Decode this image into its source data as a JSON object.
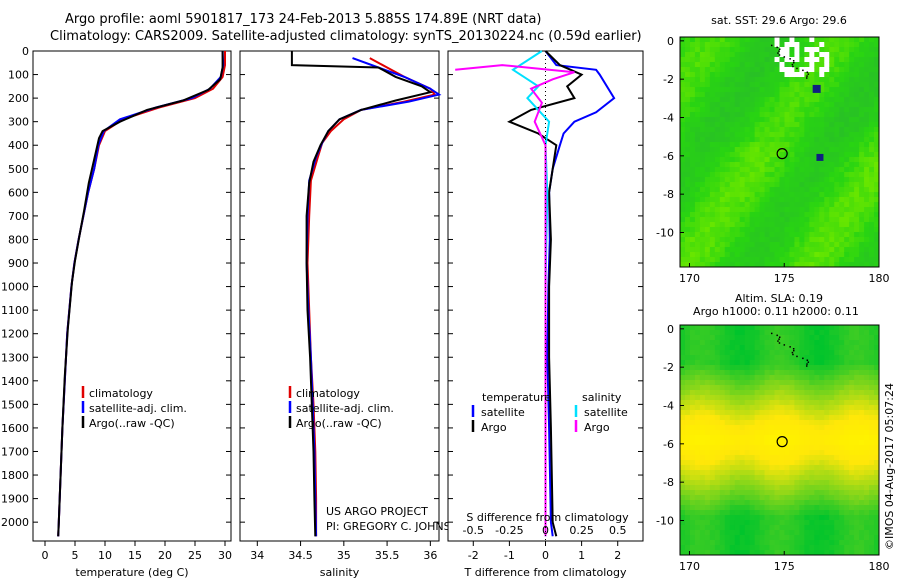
{
  "header": {
    "line1": "Argo profile: aoml 5901817_173 24-Feb-2013 5.885S 174.89E (NRT data)",
    "line2": "Climatology: CARS2009. Satellite-adjusted climatology: synTS_20130224.nc (0.59d earlier)"
  },
  "colors": {
    "climatology": "#e00000",
    "satellite": "#0000ff",
    "argo": "#000000",
    "sat_salinity": "#00e0ff",
    "argo_salinity": "#ff00ff"
  },
  "chart_data": [
    {
      "type": "line",
      "name": "temperature-panel",
      "xlabel": "temperature (deg C)",
      "ylabel": "",
      "xlim": [
        -2,
        31
      ],
      "ylim": [
        2080,
        0
      ],
      "xticks": [
        0,
        5,
        10,
        15,
        20,
        25,
        30
      ],
      "yticks": [
        0,
        100,
        200,
        300,
        400,
        500,
        600,
        700,
        800,
        900,
        1000,
        1100,
        1200,
        1300,
        1400,
        1500,
        1600,
        1700,
        1800,
        1900,
        2000
      ],
      "legend": [
        "climatology",
        "satellite-adj. clim.",
        "Argo(..raw -QC)"
      ],
      "series": [
        {
          "name": "climatology",
          "color": "#e00000",
          "points": [
            [
              30,
              0
            ],
            [
              30,
              60
            ],
            [
              29.6,
              110
            ],
            [
              28,
              160
            ],
            [
              25,
              200
            ],
            [
              19,
              240
            ],
            [
              13,
              290
            ],
            [
              10,
              340
            ],
            [
              9,
              400
            ],
            [
              8.2,
              500
            ],
            [
              7.2,
              600
            ],
            [
              6.4,
              700
            ],
            [
              5.6,
              800
            ],
            [
              4.9,
              900
            ],
            [
              4.4,
              1000
            ],
            [
              3.7,
              1200
            ],
            [
              3.3,
              1400
            ],
            [
              2.9,
              1600
            ],
            [
              2.6,
              1800
            ],
            [
              2.3,
              2000
            ],
            [
              2.2,
              2060
            ]
          ]
        },
        {
          "name": "satellite-adj. clim.",
          "color": "#0000ff",
          "points": [
            [
              29.6,
              0
            ],
            [
              29.7,
              60
            ],
            [
              29.3,
              110
            ],
            [
              27.5,
              160
            ],
            [
              24.5,
              200
            ],
            [
              18.5,
              240
            ],
            [
              12.5,
              290
            ],
            [
              9.8,
              340
            ],
            [
              8.9,
              400
            ],
            [
              8.2,
              500
            ],
            [
              7.2,
              600
            ],
            [
              6.4,
              700
            ],
            [
              5.6,
              800
            ],
            [
              4.9,
              900
            ],
            [
              4.4,
              1000
            ],
            [
              3.7,
              1200
            ],
            [
              3.3,
              1400
            ],
            [
              2.9,
              1600
            ],
            [
              2.6,
              1800
            ],
            [
              2.3,
              2000
            ],
            [
              2.2,
              2060
            ]
          ]
        },
        {
          "name": "Argo(..raw -QC)",
          "color": "#000000",
          "points": [
            [
              29.6,
              0
            ],
            [
              29.6,
              70
            ],
            [
              29.2,
              120
            ],
            [
              27.2,
              165
            ],
            [
              23,
              210
            ],
            [
              17,
              250
            ],
            [
              12.5,
              300
            ],
            [
              9.6,
              340
            ],
            [
              9,
              370
            ],
            [
              8.2,
              460
            ],
            [
              7.3,
              560
            ],
            [
              6.5,
              680
            ],
            [
              5.7,
              790
            ],
            [
              5,
              890
            ],
            [
              4.5,
              980
            ],
            [
              3.8,
              1180
            ],
            [
              3.3,
              1380
            ],
            [
              2.9,
              1600
            ],
            [
              2.6,
              1800
            ],
            [
              2.3,
              2000
            ],
            [
              2.2,
              2060
            ]
          ]
        }
      ]
    },
    {
      "type": "line",
      "name": "salinity-panel",
      "xlabel": "salinity",
      "ylabel": "",
      "xlim": [
        33.8,
        36.1
      ],
      "ylim": [
        2080,
        0
      ],
      "xticks": [
        34,
        34.5,
        35,
        35.5,
        36
      ],
      "legend": [
        "climatology",
        "satellite-adj. clim.",
        "Argo(..raw -QC)"
      ],
      "annotations": [
        "US ARGO PROJECT",
        "PI: GREGORY C. JOHNSON"
      ],
      "series": [
        {
          "name": "climatology",
          "color": "#e00000",
          "points": [
            [
              35.3,
              30
            ],
            [
              35.5,
              70
            ],
            [
              35.7,
              110
            ],
            [
              36,
              160
            ],
            [
              36.05,
              185
            ],
            [
              35.7,
              215
            ],
            [
              35.2,
              250
            ],
            [
              35,
              290
            ],
            [
              34.85,
              340
            ],
            [
              34.75,
              390
            ],
            [
              34.7,
              450
            ],
            [
              34.62,
              550
            ],
            [
              34.6,
              700
            ],
            [
              34.58,
              900
            ],
            [
              34.6,
              1100
            ],
            [
              34.62,
              1300
            ],
            [
              34.65,
              1500
            ],
            [
              34.67,
              1700
            ],
            [
              34.68,
              1900
            ],
            [
              34.68,
              2060
            ]
          ]
        },
        {
          "name": "satellite-adj. clim.",
          "color": "#0000ff",
          "points": [
            [
              35.1,
              30
            ],
            [
              35.4,
              70
            ],
            [
              35.7,
              110
            ],
            [
              36,
              160
            ],
            [
              36.1,
              185
            ],
            [
              35.75,
              215
            ],
            [
              35.2,
              250
            ],
            [
              34.95,
              290
            ],
            [
              34.82,
              340
            ],
            [
              34.75,
              390
            ],
            [
              34.68,
              450
            ],
            [
              34.6,
              550
            ],
            [
              34.58,
              700
            ],
            [
              34.57,
              900
            ],
            [
              34.59,
              1100
            ],
            [
              34.62,
              1300
            ],
            [
              34.64,
              1500
            ],
            [
              34.66,
              1700
            ],
            [
              34.67,
              1900
            ],
            [
              34.68,
              2060
            ]
          ]
        },
        {
          "name": "Argo(..raw -QC)",
          "color": "#000000",
          "points": [
            [
              34.4,
              0
            ],
            [
              34.4,
              60
            ],
            [
              35.4,
              70
            ],
            [
              35.6,
              110
            ],
            [
              35.9,
              150
            ],
            [
              36,
              175
            ],
            [
              35.6,
              210
            ],
            [
              35.2,
              250
            ],
            [
              34.95,
              290
            ],
            [
              34.82,
              340
            ],
            [
              34.73,
              400
            ],
            [
              34.65,
              470
            ],
            [
              34.6,
              560
            ],
            [
              34.57,
              700
            ],
            [
              34.57,
              900
            ],
            [
              34.58,
              1100
            ],
            [
              34.61,
              1300
            ],
            [
              34.63,
              1500
            ],
            [
              34.65,
              1700
            ],
            [
              34.66,
              1900
            ],
            [
              34.67,
              2060
            ]
          ]
        }
      ]
    },
    {
      "type": "line",
      "name": "difference-panel",
      "xlabel": "T difference from climatology",
      "xlabel_top": "S difference from climatology",
      "xlim": [
        -2.7,
        2.7
      ],
      "ylim": [
        2080,
        0
      ],
      "xticks": [
        -2,
        -1,
        0,
        1,
        2
      ],
      "xticks_top": [
        -0.5,
        -0.25,
        0,
        0.25,
        0.5
      ],
      "legend_groups": [
        "temperature",
        "salinity"
      ],
      "legend": [
        "satellite",
        "Argo",
        "satellite",
        "Argo"
      ],
      "series": [
        {
          "name": "temperature satellite",
          "color": "#0000ff",
          "points": [
            [
              0,
              0
            ],
            [
              0.3,
              60
            ],
            [
              1.4,
              80
            ],
            [
              1.5,
              100
            ],
            [
              1.9,
              200
            ],
            [
              1.4,
              260
            ],
            [
              0.8,
              300
            ],
            [
              0.5,
              350
            ],
            [
              0.4,
              400
            ],
            [
              0.2,
              500
            ],
            [
              0.1,
              600
            ],
            [
              0.12,
              800
            ],
            [
              0.08,
              1000
            ],
            [
              0.05,
              1300
            ],
            [
              0.1,
              1600
            ],
            [
              0.15,
              2000
            ],
            [
              0.2,
              2060
            ]
          ]
        },
        {
          "name": "temperature Argo",
          "color": "#000000",
          "points": [
            [
              0,
              0
            ],
            [
              0.4,
              60
            ],
            [
              1,
              100
            ],
            [
              0.6,
              150
            ],
            [
              0.8,
              200
            ],
            [
              -0.4,
              250
            ],
            [
              -1,
              300
            ],
            [
              -0.2,
              350
            ],
            [
              0.3,
              400
            ],
            [
              0.2,
              500
            ],
            [
              0.1,
              600
            ],
            [
              0.15,
              800
            ],
            [
              0.1,
              1000
            ],
            [
              0.1,
              1300
            ],
            [
              0.15,
              1600
            ],
            [
              0.2,
              2000
            ],
            [
              0.3,
              2060
            ]
          ]
        },
        {
          "name": "salinity satellite",
          "color": "#00e0ff",
          "points": [
            [
              -0.1,
              0
            ],
            [
              -0.9,
              80
            ],
            [
              -0.2,
              150
            ],
            [
              -0.5,
              200
            ],
            [
              0.1,
              300
            ],
            [
              0,
              400
            ],
            [
              0.05,
              600
            ],
            [
              0,
              1000
            ],
            [
              0,
              1400
            ],
            [
              0,
              1800
            ],
            [
              0,
              2060
            ]
          ]
        },
        {
          "name": "salinity Argo",
          "color": "#ff00ff",
          "points": [
            [
              -2.5,
              80
            ],
            [
              -1.2,
              60
            ],
            [
              0.8,
              90
            ],
            [
              0.2,
              120
            ],
            [
              -0.4,
              160
            ],
            [
              -0.1,
              220
            ],
            [
              -0.3,
              300
            ],
            [
              0,
              400
            ],
            [
              0,
              600
            ],
            [
              0,
              1000
            ],
            [
              0,
              1400
            ],
            [
              0,
              1800
            ],
            [
              0,
              2060
            ]
          ]
        }
      ]
    },
    {
      "type": "heatmap",
      "name": "sst-map",
      "title": "sat. SST: 29.6 Argo: 29.6",
      "xlim": [
        169.5,
        180
      ],
      "ylim": [
        -11.8,
        0.2
      ],
      "xticks": [
        170,
        175,
        180
      ],
      "yticks": [
        0,
        -2,
        -4,
        -6,
        -8,
        -10
      ],
      "marker": [
        174.89,
        -5.885
      ]
    },
    {
      "type": "heatmap",
      "name": "sla-map",
      "title": "Altim. SLA: 0.19",
      "subtitle": "Argo h1000: 0.11 h2000: 0.11",
      "xlim": [
        169.5,
        180
      ],
      "ylim": [
        -11.8,
        0.2
      ],
      "xticks": [
        170,
        175,
        180
      ],
      "yticks": [
        0,
        -2,
        -4,
        -6,
        -8,
        -10
      ],
      "marker": [
        174.89,
        -5.885
      ]
    }
  ],
  "footer": {
    "stamp": "©IMOS 04-Aug-2017 05:07:24"
  }
}
